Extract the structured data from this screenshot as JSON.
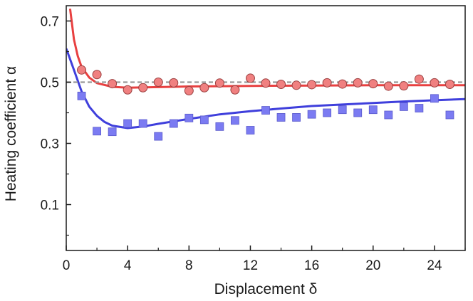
{
  "chart_data": {
    "type": "scatter",
    "title": "",
    "xlabel": "Displacement δ",
    "ylabel": "Heating coefficient α",
    "xlim": [
      0,
      26
    ],
    "ylim": [
      -0.05,
      0.75
    ],
    "xticks": [
      "0",
      "4",
      "8",
      "12",
      "16",
      "20",
      "24"
    ],
    "xtick_values": [
      0,
      4,
      8,
      12,
      16,
      20,
      24
    ],
    "yticks": [
      "0.1",
      "0.3",
      "0.5",
      "0.7"
    ],
    "ytick_values": [
      0.1,
      0.3,
      0.5,
      0.7
    ],
    "grid": false,
    "legend": "none",
    "reference_line": {
      "y": 0.5,
      "style": "dashed",
      "color": "#999999"
    },
    "series": [
      {
        "marker": "circle",
        "color": "#f08080",
        "fit_color": "#e84040",
        "points": [
          [
            1,
            0.54
          ],
          [
            2,
            0.525
          ],
          [
            3,
            0.495
          ],
          [
            4,
            0.475
          ],
          [
            5,
            0.482
          ],
          [
            6,
            0.5
          ],
          [
            7,
            0.498
          ],
          [
            8,
            0.472
          ],
          [
            9,
            0.482
          ],
          [
            10,
            0.497
          ],
          [
            11,
            0.475
          ],
          [
            12,
            0.513
          ],
          [
            13,
            0.497
          ],
          [
            14,
            0.493
          ],
          [
            15,
            0.49
          ],
          [
            16,
            0.492
          ],
          [
            17,
            0.498
          ],
          [
            18,
            0.494
          ],
          [
            19,
            0.498
          ],
          [
            20,
            0.495
          ],
          [
            21,
            0.487
          ],
          [
            22,
            0.488
          ],
          [
            23,
            0.51
          ],
          [
            24,
            0.498
          ],
          [
            25,
            0.493
          ]
        ],
        "fit": [
          [
            0.25,
            0.74
          ],
          [
            0.5,
            0.64
          ],
          [
            0.75,
            0.585
          ],
          [
            1,
            0.55
          ],
          [
            1.5,
            0.515
          ],
          [
            2,
            0.497
          ],
          [
            3,
            0.485
          ],
          [
            4,
            0.482
          ],
          [
            6,
            0.484
          ],
          [
            8,
            0.486
          ],
          [
            12,
            0.488
          ],
          [
            16,
            0.489
          ],
          [
            20,
            0.49
          ],
          [
            26,
            0.49
          ]
        ]
      },
      {
        "marker": "square",
        "color": "#7b7bf2",
        "fit_color": "#3f3fdc",
        "points": [
          [
            1,
            0.455
          ],
          [
            2,
            0.34
          ],
          [
            3,
            0.338
          ],
          [
            4,
            0.365
          ],
          [
            5,
            0.365
          ],
          [
            6,
            0.323
          ],
          [
            7,
            0.365
          ],
          [
            8,
            0.383
          ],
          [
            9,
            0.377
          ],
          [
            10,
            0.355
          ],
          [
            11,
            0.375
          ],
          [
            12,
            0.343
          ],
          [
            13,
            0.408
          ],
          [
            14,
            0.385
          ],
          [
            15,
            0.385
          ],
          [
            16,
            0.395
          ],
          [
            17,
            0.4
          ],
          [
            18,
            0.41
          ],
          [
            19,
            0.4
          ],
          [
            20,
            0.41
          ],
          [
            21,
            0.393
          ],
          [
            22,
            0.42
          ],
          [
            23,
            0.415
          ],
          [
            24,
            0.447
          ],
          [
            25,
            0.393
          ]
        ],
        "fit": [
          [
            0,
            0.61
          ],
          [
            0.5,
            0.54
          ],
          [
            1,
            0.47
          ],
          [
            1.5,
            0.42
          ],
          [
            2,
            0.39
          ],
          [
            2.5,
            0.37
          ],
          [
            3,
            0.358
          ],
          [
            4,
            0.35
          ],
          [
            5,
            0.355
          ],
          [
            6,
            0.364
          ],
          [
            8,
            0.38
          ],
          [
            10,
            0.395
          ],
          [
            12,
            0.405
          ],
          [
            14,
            0.414
          ],
          [
            16,
            0.422
          ],
          [
            18,
            0.427
          ],
          [
            20,
            0.432
          ],
          [
            22,
            0.437
          ],
          [
            24,
            0.441
          ],
          [
            26,
            0.445
          ]
        ]
      }
    ]
  }
}
